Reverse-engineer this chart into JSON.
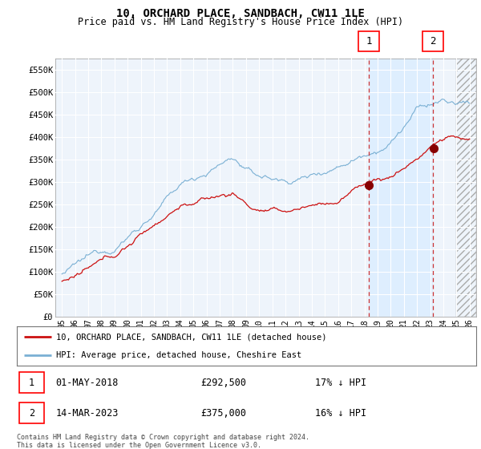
{
  "title": "10, ORCHARD PLACE, SANDBACH, CW11 1LE",
  "subtitle": "Price paid vs. HM Land Registry's House Price Index (HPI)",
  "ylabel_ticks": [
    "£0",
    "£50K",
    "£100K",
    "£150K",
    "£200K",
    "£250K",
    "£300K",
    "£350K",
    "£400K",
    "£450K",
    "£500K",
    "£550K"
  ],
  "ytick_values": [
    0,
    50000,
    100000,
    150000,
    200000,
    250000,
    300000,
    350000,
    400000,
    450000,
    500000,
    550000
  ],
  "ylim": [
    0,
    575000
  ],
  "xlim_start": 1994.5,
  "xlim_end": 2026.5,
  "hpi_color": "#7ab0d4",
  "price_color": "#cc1111",
  "marker1_date": 2018.33,
  "marker1_price": 292500,
  "marker1_label": "01-MAY-2018",
  "marker1_amount": "£292,500",
  "marker1_pct": "17% ↓ HPI",
  "marker2_date": 2023.21,
  "marker2_price": 375000,
  "marker2_label": "14-MAR-2023",
  "marker2_amount": "£375,000",
  "marker2_pct": "16% ↓ HPI",
  "legend_line1": "10, ORCHARD PLACE, SANDBACH, CW11 1LE (detached house)",
  "legend_line2": "HPI: Average price, detached house, Cheshire East",
  "footer": "Contains HM Land Registry data © Crown copyright and database right 2024.\nThis data is licensed under the Open Government Licence v3.0.",
  "shaded_region_color": "#ddeeff",
  "hatch_region_start": 2025.0,
  "hatch_region_end": 2026.5
}
